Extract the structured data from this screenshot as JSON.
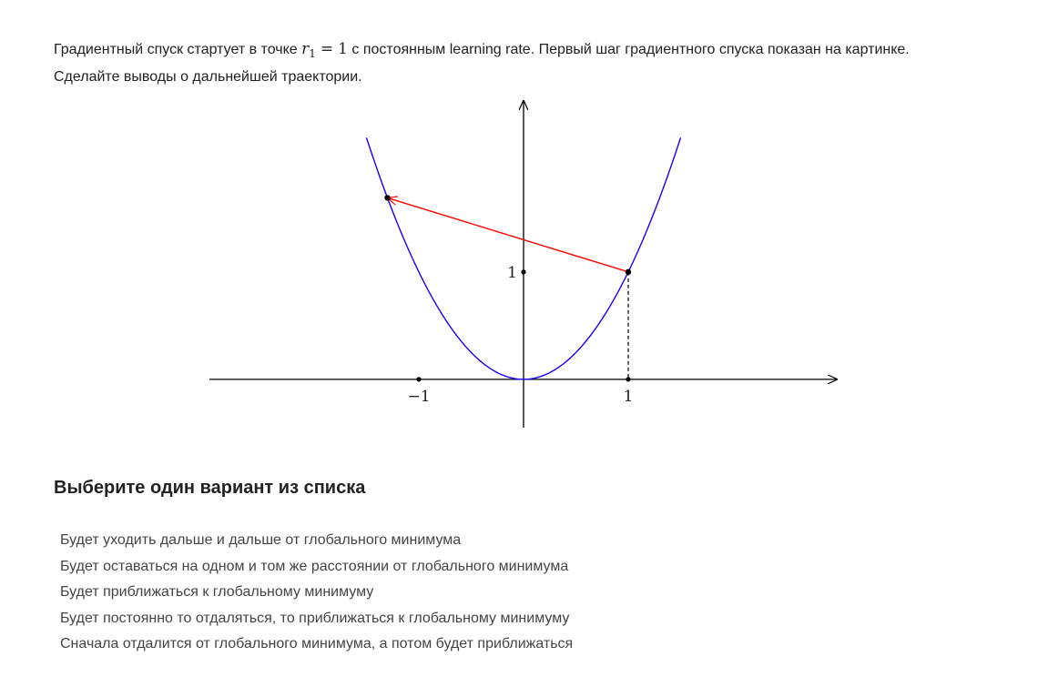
{
  "question": {
    "text_before": "Градиентный спуск стартует в точке ",
    "math_var": "r",
    "math_sub": "1",
    "math_rel": "=",
    "math_value": "1",
    "text_after": " с постоянным learning rate. Первый шаг градиентного спуска показан на картинке.",
    "line2": "Сделайте выводы о дальнейшей траектории."
  },
  "chart_data": {
    "type": "line",
    "title": "",
    "xlabel": "",
    "ylabel": "",
    "function": "y = x^2",
    "series": [
      {
        "color": "#1a00ff",
        "x": [
          -1.5,
          -1.25,
          -1.0,
          -0.75,
          -0.5,
          -0.25,
          0,
          0.25,
          0.5,
          0.75,
          1.0,
          1.25,
          1.5
        ],
        "y": [
          2.25,
          1.5625,
          1.0,
          0.5625,
          0.25,
          0.0625,
          0,
          0.0625,
          0.25,
          0.5625,
          1.0,
          1.5625,
          2.25
        ]
      }
    ],
    "gradient_step": {
      "from": [
        1,
        1
      ],
      "to": [
        -1.3,
        1.69
      ],
      "color": "#ff0000"
    },
    "marked_points": [
      [
        1,
        1
      ],
      [
        -1.3,
        1.69
      ],
      [
        0,
        1
      ],
      [
        -1,
        0
      ],
      [
        1,
        0
      ]
    ],
    "tick_labels": {
      "x": [
        {
          "value": -1,
          "label": "−1"
        },
        {
          "value": 1,
          "label": "1"
        }
      ],
      "y": [
        {
          "value": 1,
          "label": "1"
        }
      ]
    },
    "xlim": [
      -3,
      3
    ],
    "ylim": [
      -0.45,
      2.6
    ],
    "grid": false
  },
  "answers": {
    "title": "Выберите один вариант из списка",
    "options": [
      "Будет уходить дальше и дальше от глобального минимума",
      "Будет оставаться на одном и том же расстоянии от глобального минимума",
      "Будет приближаться к глобальному минимуму",
      "Будет постоянно то отдаляться, то приближаться к глобальному минимуму",
      "Сначала отдалится от глобального минимума, а потом будет приближаться"
    ]
  }
}
